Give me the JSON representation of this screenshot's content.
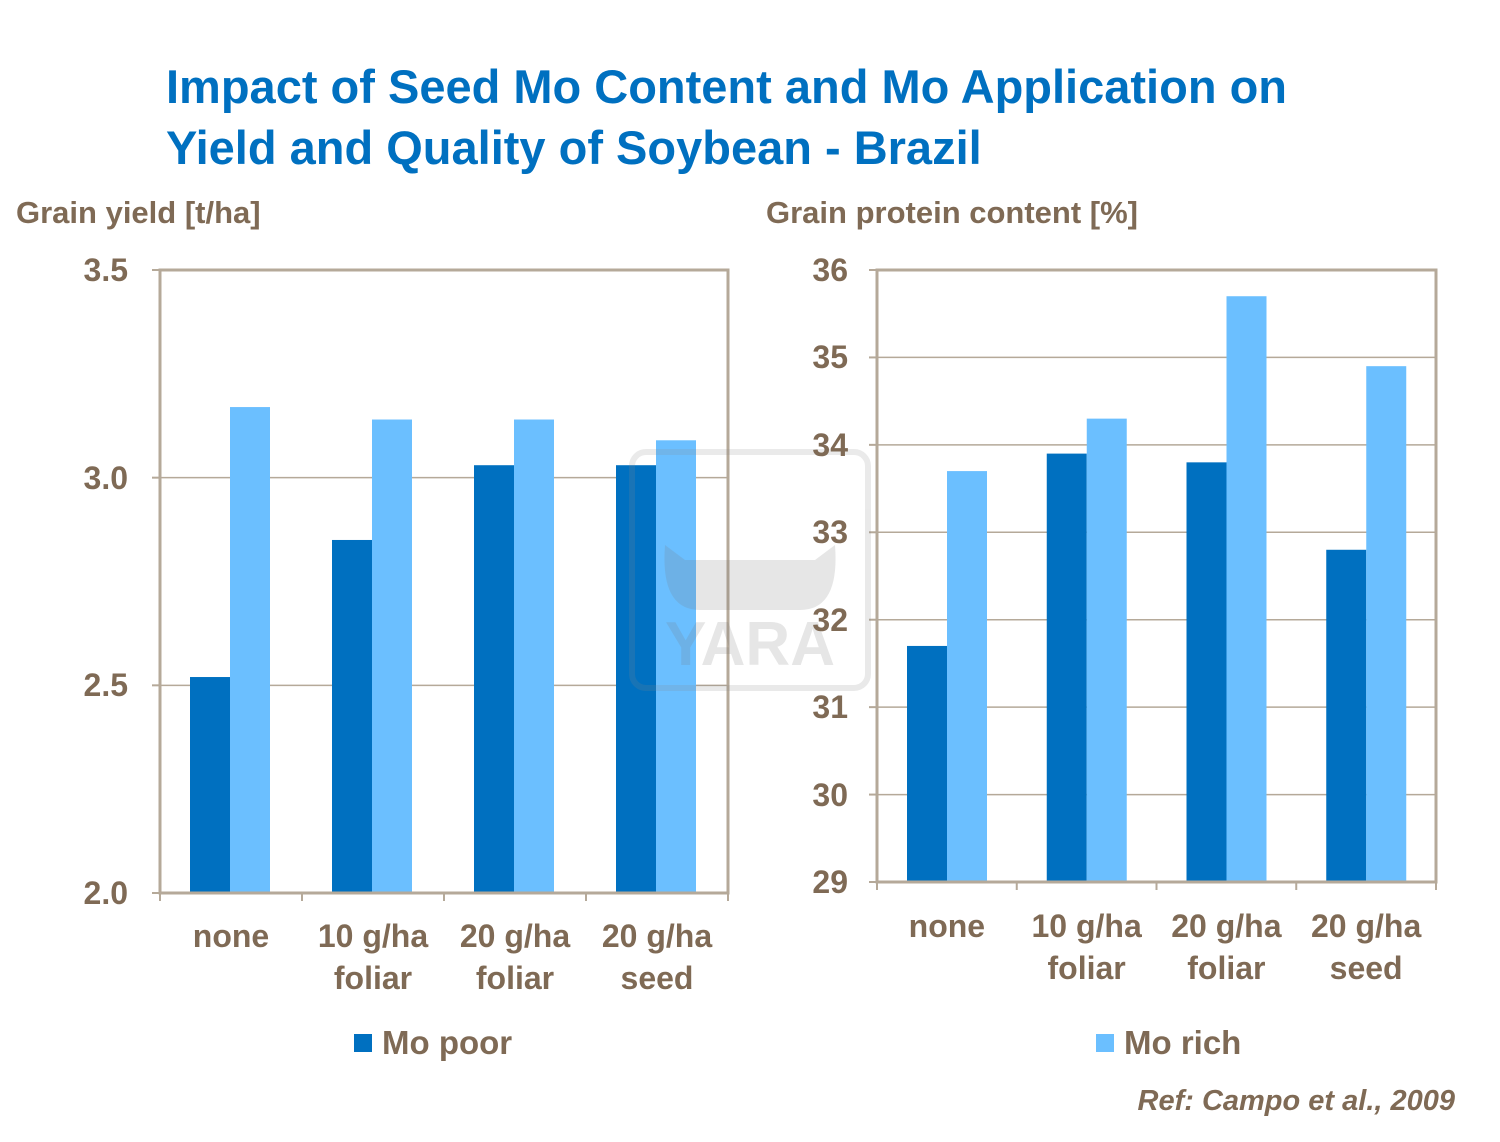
{
  "title": "Impact of Seed Mo Content and Mo Application on\nYield and Quality of Soybean - Brazil",
  "reference": "Ref: Campo et al., 2009",
  "watermark": "YARA",
  "colors": {
    "mo_poor": "#0070C0",
    "mo_rich": "#6BBFFF",
    "text": "#7F6A55",
    "title": "#0070C0",
    "frame": "#B5A999"
  },
  "legend": [
    {
      "name": "Mo poor",
      "color": "#0070C0"
    },
    {
      "name": "Mo rich",
      "color": "#6BBFFF"
    }
  ],
  "chart_data": [
    {
      "type": "bar",
      "ylabel": "Grain yield [t/ha]",
      "categories": [
        "none",
        "10 g/ha\nfoliar",
        "20 g/ha\nfoliar",
        "20 g/ha\nseed"
      ],
      "ylim": [
        2.0,
        3.5
      ],
      "yticks": [
        "2.0",
        "2.5",
        "3.0",
        "3.5"
      ],
      "grid": true,
      "series": [
        {
          "name": "Mo poor",
          "values": [
            2.52,
            2.85,
            3.03,
            3.03
          ]
        },
        {
          "name": "Mo rich",
          "values": [
            3.17,
            3.14,
            3.14,
            3.09
          ]
        }
      ]
    },
    {
      "type": "bar",
      "ylabel": "Grain protein content [%]",
      "categories": [
        "none",
        "10 g/ha\nfoliar",
        "20 g/ha\nfoliar",
        "20 g/ha\nseed"
      ],
      "ylim": [
        29,
        36
      ],
      "yticks": [
        "29",
        "30",
        "31",
        "32",
        "33",
        "34",
        "35",
        "36"
      ],
      "grid": true,
      "series": [
        {
          "name": "Mo poor",
          "values": [
            31.7,
            33.9,
            33.8,
            32.8
          ]
        },
        {
          "name": "Mo rich",
          "values": [
            33.7,
            34.3,
            35.7,
            34.9
          ]
        }
      ]
    }
  ]
}
